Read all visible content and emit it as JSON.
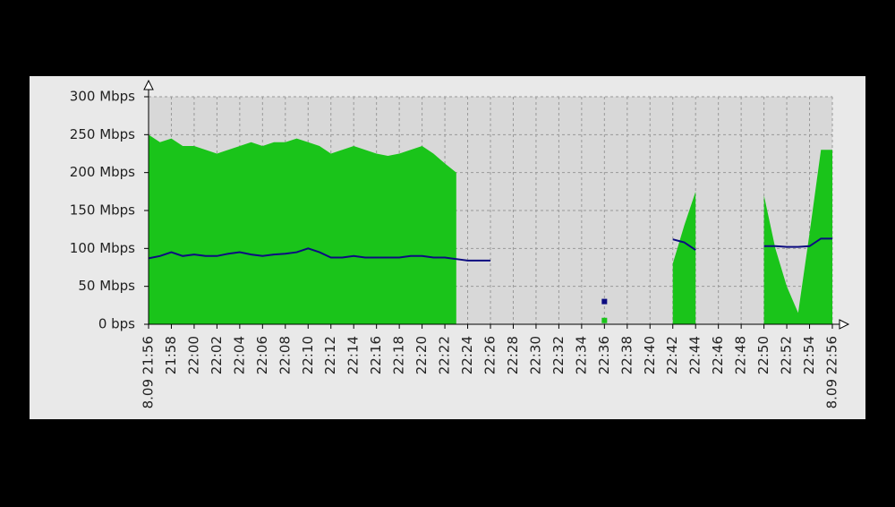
{
  "chart_data": {
    "type": "area",
    "x": [
      "21:56",
      "21:57",
      "21:58",
      "21:59",
      "22:00",
      "22:01",
      "22:02",
      "22:03",
      "22:04",
      "22:05",
      "22:06",
      "22:07",
      "22:08",
      "22:09",
      "22:10",
      "22:11",
      "22:12",
      "22:13",
      "22:14",
      "22:15",
      "22:16",
      "22:17",
      "22:18",
      "22:19",
      "22:20",
      "22:21",
      "22:22",
      "22:23",
      "22:24",
      "22:25",
      "22:26",
      "22:27",
      "22:28",
      "22:29",
      "22:30",
      "22:31",
      "22:32",
      "22:33",
      "22:34",
      "22:35",
      "22:36",
      "22:37",
      "22:38",
      "22:39",
      "22:40",
      "22:41",
      "22:42",
      "22:43",
      "22:44",
      "22:45",
      "22:46",
      "22:47",
      "22:48",
      "22:49",
      "22:50",
      "22:51",
      "22:52",
      "22:53",
      "22:54",
      "22:55",
      "22:56"
    ],
    "series": [
      {
        "color": "#1ac41a",
        "kind": "area",
        "values": [
          250000000,
          240000000,
          245000000,
          235000000,
          235000000,
          230000000,
          225000000,
          230000000,
          235000000,
          240000000,
          235000000,
          240000000,
          240000000,
          245000000,
          240000000,
          235000000,
          225000000,
          230000000,
          235000000,
          230000000,
          225000000,
          222000000,
          225000000,
          230000000,
          235000000,
          225000000,
          212000000,
          200000000,
          null,
          null,
          null,
          null,
          null,
          null,
          null,
          null,
          null,
          null,
          null,
          null,
          5000000,
          null,
          null,
          null,
          null,
          null,
          80000000,
          130000000,
          175000000,
          null,
          null,
          null,
          null,
          null,
          170000000,
          100000000,
          50000000,
          15000000,
          120000000,
          230000000,
          230000000
        ]
      },
      {
        "color": "#0c0c80",
        "kind": "line",
        "values": [
          87000000,
          90000000,
          95000000,
          90000000,
          92000000,
          90000000,
          90000000,
          93000000,
          95000000,
          92000000,
          90000000,
          92000000,
          93000000,
          95000000,
          100000000,
          95000000,
          88000000,
          88000000,
          90000000,
          88000000,
          88000000,
          88000000,
          88000000,
          90000000,
          90000000,
          88000000,
          88000000,
          86000000,
          84000000,
          84000000,
          84000000,
          null,
          null,
          null,
          null,
          null,
          null,
          null,
          null,
          null,
          30000000,
          null,
          null,
          null,
          null,
          null,
          112000000,
          108000000,
          98000000,
          null,
          null,
          null,
          null,
          null,
          103000000,
          103000000,
          102000000,
          102000000,
          103000000,
          113000000,
          113000000
        ]
      }
    ],
    "xlim": [
      "21:56",
      "22:56"
    ],
    "xticks": [
      {
        "value": "21:56",
        "label": "8.09 21:56",
        "color": "#a03030"
      },
      "21:58",
      {
        "value": "22:00",
        "label": "22:00",
        "color": "#a03030"
      },
      "22:02",
      "22:04",
      "22:06",
      "22:08",
      "22:10",
      "22:12",
      "22:14",
      "22:16",
      "22:18",
      "22:20",
      "22:22",
      "22:24",
      "22:26",
      "22:28",
      "22:30",
      "22:32",
      "22:34",
      "22:36",
      "22:38",
      "22:40",
      "22:42",
      "22:44",
      "22:46",
      "22:48",
      "22:50",
      "22:52",
      "22:54",
      {
        "value": "22:56",
        "label": "8.09 22:56",
        "color": "#a03030"
      }
    ],
    "ylim": [
      0,
      300000000
    ],
    "yticks": [
      {
        "value": 0,
        "label": "0 bps"
      },
      {
        "value": 50000000,
        "label": "50 Mbps"
      },
      {
        "value": 100000000,
        "label": "100 Mbps"
      },
      {
        "value": 150000000,
        "label": "150 Mbps"
      },
      {
        "value": 200000000,
        "label": "200 Mbps"
      },
      {
        "value": 250000000,
        "label": "250 Mbps"
      },
      {
        "value": 300000000,
        "label": "300 Mbps"
      }
    ],
    "grid": true
  }
}
